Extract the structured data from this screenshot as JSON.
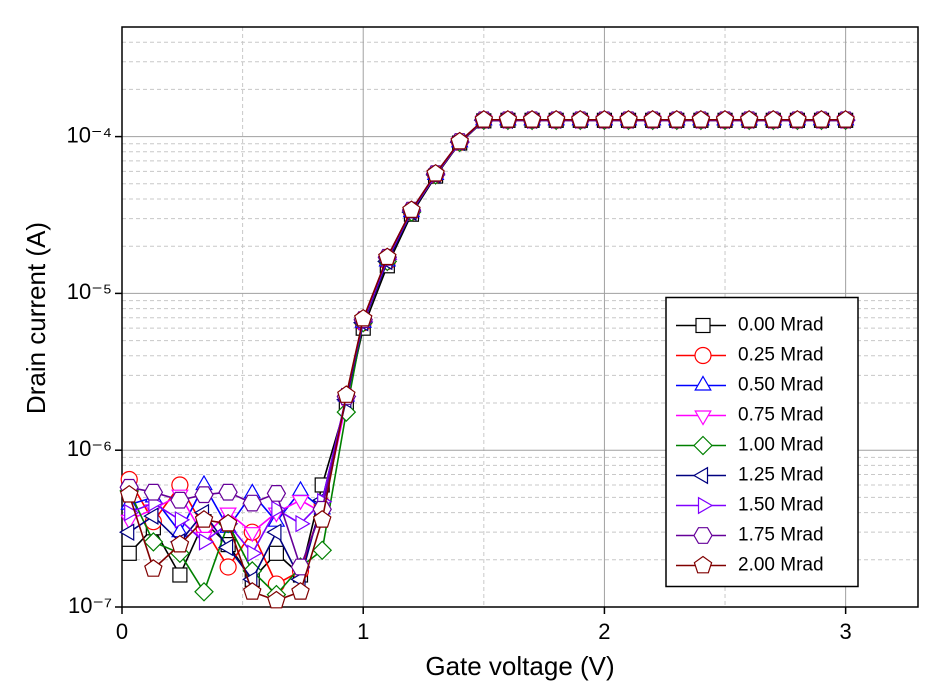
{
  "chart_data": {
    "type": "line",
    "xlabel": "Gate voltage (V)",
    "ylabel": "Drain current (A)",
    "x": [
      0.03,
      0.13,
      0.24,
      0.34,
      0.44,
      0.54,
      0.64,
      0.74,
      0.83,
      0.93,
      1.0,
      1.1,
      1.2,
      1.3,
      1.4,
      1.5,
      1.6,
      1.7,
      1.8,
      1.9,
      2.0,
      2.1,
      2.2,
      2.3,
      2.4,
      2.5,
      2.6,
      2.7,
      2.8,
      2.9,
      3.0
    ],
    "xlim": [
      0,
      3.3
    ],
    "xticks": [
      0,
      1,
      2,
      3
    ],
    "ylim": [
      1e-07,
      0.0005
    ],
    "ylog": true,
    "yticks": [
      {
        "value": 1e-07,
        "label": "10⁻⁷"
      },
      {
        "value": 1e-06,
        "label": "10⁻⁶"
      },
      {
        "value": 1e-05,
        "label": "10⁻⁵"
      },
      {
        "value": 0.0001,
        "label": "10⁻⁴"
      }
    ],
    "grid": true,
    "legend": "center right",
    "series": [
      {
        "name": "0.00 Mrad",
        "color": "#000000",
        "marker": "square",
        "values": [
          2.2e-07,
          3.2e-07,
          1.6e-07,
          3.5e-07,
          2.5e-07,
          1.5e-07,
          2.2e-07,
          1.6e-07,
          6e-07,
          2e-06,
          6e-06,
          1.5e-05,
          3.2e-05,
          5.6e-05,
          9.1e-05,
          0.000126,
          0.000127,
          0.000127,
          0.000127,
          0.000127,
          0.000127,
          0.000127,
          0.000127,
          0.000127,
          0.000127,
          0.000127,
          0.000127,
          0.000127,
          0.000127,
          0.000127,
          0.000127
        ]
      },
      {
        "name": "0.25 Mrad",
        "color": "#ff0000",
        "marker": "circle",
        "values": [
          6.5e-07,
          3.5e-07,
          6e-07,
          3.2e-07,
          1.8e-07,
          3e-07,
          1.4e-07,
          1.7e-07,
          4.5e-07,
          2.2e-06,
          6.5e-06,
          1.6e-05,
          3.3e-05,
          5.7e-05,
          9.2e-05,
          0.000127,
          0.000127,
          0.000127,
          0.000127,
          0.000127,
          0.000127,
          0.000127,
          0.000127,
          0.000127,
          0.000127,
          0.000127,
          0.000127,
          0.000127,
          0.000127,
          0.000127,
          0.000127
        ]
      },
      {
        "name": "0.50 Mrad",
        "color": "#0000ff",
        "marker": "triangle-up",
        "values": [
          4.5e-07,
          5e-07,
          3e-07,
          6e-07,
          3.2e-07,
          5.3e-07,
          3.5e-07,
          5.5e-07,
          4.2e-07,
          2.2e-06,
          6.5e-06,
          1.6e-05,
          3.3e-05,
          5.7e-05,
          9.2e-05,
          0.000127,
          0.000127,
          0.000127,
          0.000127,
          0.000127,
          0.000127,
          0.000127,
          0.000127,
          0.000127,
          0.000127,
          0.000127,
          0.000127,
          0.000127,
          0.000127,
          0.000127,
          0.000127
        ]
      },
      {
        "name": "0.75 Mrad",
        "color": "#ff00ff",
        "marker": "triangle-down",
        "values": [
          3.6e-07,
          4.2e-07,
          5.2e-07,
          2.8e-07,
          4e-07,
          3e-07,
          4e-07,
          4.8e-07,
          4e-07,
          2e-06,
          6.5e-06,
          1.6e-05,
          3.3e-05,
          5.7e-05,
          9.2e-05,
          0.000127,
          0.000127,
          0.000127,
          0.000127,
          0.000127,
          0.000127,
          0.000127,
          0.000127,
          0.000127,
          0.000127,
          0.000127,
          0.000127,
          0.000127,
          0.000127,
          0.000127,
          0.000127
        ]
      },
      {
        "name": "1.00 Mrad",
        "color": "#008000",
        "marker": "diamond",
        "values": [
          5.5e-07,
          2.6e-07,
          2.2e-07,
          1.25e-07,
          3.4e-07,
          1.7e-07,
          1.2e-07,
          1.8e-07,
          2.3e-07,
          1.75e-06,
          6.5e-06,
          1.6e-05,
          3.3e-05,
          5.7e-05,
          9.2e-05,
          0.000127,
          0.000127,
          0.000127,
          0.000127,
          0.000127,
          0.000127,
          0.000127,
          0.000127,
          0.000127,
          0.000127,
          0.000127,
          0.000127,
          0.000127,
          0.000127,
          0.000127,
          0.000127
        ]
      },
      {
        "name": "1.25 Mrad",
        "color": "#000080",
        "marker": "triangle-left",
        "values": [
          3e-07,
          3.8e-07,
          2.6e-07,
          4e-07,
          2.4e-07,
          1.5e-07,
          3e-07,
          1.5e-07,
          4.8e-07,
          2.1e-06,
          6.5e-06,
          1.6e-05,
          3.3e-05,
          5.7e-05,
          9.2e-05,
          0.000127,
          0.000127,
          0.000127,
          0.000127,
          0.000127,
          0.000127,
          0.000127,
          0.000127,
          0.000127,
          0.000127,
          0.000127,
          0.000127,
          0.000127,
          0.000127,
          0.000127,
          0.000127
        ]
      },
      {
        "name": "1.50 Mrad",
        "color": "#8000ff",
        "marker": "triangle-right",
        "values": [
          4e-07,
          4.6e-07,
          3.6e-07,
          2.6e-07,
          3.4e-07,
          2.2e-07,
          4.2e-07,
          3.4e-07,
          4.7e-07,
          2.2e-06,
          6.6e-06,
          1.65e-05,
          3.35e-05,
          5.7e-05,
          9.2e-05,
          0.000127,
          0.000127,
          0.000127,
          0.000127,
          0.000127,
          0.000127,
          0.000127,
          0.000127,
          0.000127,
          0.000127,
          0.000127,
          0.000127,
          0.000127,
          0.000127,
          0.000127,
          0.000127
        ]
      },
      {
        "name": "1.75 Mrad",
        "color": "#660099",
        "marker": "hexagon",
        "values": [
          5.8e-07,
          5.4e-07,
          4.8e-07,
          5.2e-07,
          5.4e-07,
          4.6e-07,
          5.3e-07,
          1.8e-07,
          4.2e-07,
          2.2e-06,
          6.8e-06,
          1.7e-05,
          3.4e-05,
          5.8e-05,
          9.3e-05,
          0.000128,
          0.000128,
          0.000128,
          0.000128,
          0.000128,
          0.000128,
          0.000128,
          0.000128,
          0.000128,
          0.000128,
          0.000128,
          0.000128,
          0.000128,
          0.000128,
          0.000128,
          0.000128
        ]
      },
      {
        "name": "2.00 Mrad",
        "color": "#800000",
        "marker": "pentagon",
        "values": [
          5.2e-07,
          1.75e-07,
          2.5e-07,
          3.6e-07,
          3.4e-07,
          1.25e-07,
          1.1e-07,
          1.25e-07,
          3.6e-07,
          2.25e-06,
          6.9e-06,
          1.7e-05,
          3.4e-05,
          5.8e-05,
          9.3e-05,
          0.000128,
          0.000128,
          0.000128,
          0.000128,
          0.000128,
          0.000128,
          0.000128,
          0.000128,
          0.000128,
          0.000128,
          0.000128,
          0.000128,
          0.000128,
          0.000128,
          0.000128,
          0.000128
        ]
      }
    ]
  }
}
